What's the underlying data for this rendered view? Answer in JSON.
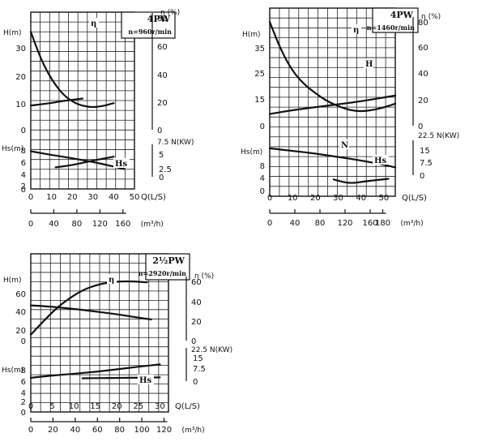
{
  "chart_data": [
    {
      "type": "line",
      "model": "4PW",
      "speed": "n=960r/min",
      "x_unit": "Q(L/S)",
      "x_ticks": [
        "0",
        "10",
        "20",
        "30",
        "40",
        "50"
      ],
      "x2_unit": "(m³/h)",
      "x2_ticks": [
        "0",
        "40",
        "80",
        "120",
        "160"
      ],
      "h_label": "H(m)",
      "h_ticks": [
        "30",
        "20",
        "10",
        "0"
      ],
      "eta_label": "η (%)",
      "eta_ticks": [
        "80",
        "60",
        "40",
        "20",
        "0"
      ],
      "hs_label": "Hs(m)",
      "hs_ticks": [
        "8",
        "6",
        "4",
        "2",
        "0"
      ],
      "n_label": "7.5 N(KW)",
      "n_ticks": [
        "5",
        "2.5",
        "0"
      ],
      "series": [
        {
          "name": "η",
          "axis": "eta",
          "x": [
            0,
            5,
            10,
            15,
            20,
            25,
            30,
            35,
            40
          ],
          "y": [
            10,
            30,
            44,
            54,
            60,
            63,
            64,
            63,
            61
          ]
        },
        {
          "name": "",
          "axis": "h",
          "x": [
            0,
            5,
            10,
            15,
            20,
            25
          ],
          "y": [
            16,
            15,
            14,
            12.5,
            11.5,
            10.5
          ]
        },
        {
          "name": "",
          "axis": "n",
          "x": [
            0,
            10,
            20,
            30,
            40,
            45
          ],
          "y": [
            2,
            2.8,
            3.5,
            4.3,
            5.3,
            5.8
          ]
        },
        {
          "name": "Hs",
          "axis": "hs",
          "x": [
            12,
            20,
            30,
            40
          ],
          "y": [
            6.2,
            5.8,
            5,
            4.3
          ]
        }
      ]
    },
    {
      "type": "line",
      "model": "4PW",
      "speed": "n=1460r/min",
      "x_unit": "Q(L/S)",
      "x_ticks": [
        "0",
        "10",
        "20",
        "30",
        "40",
        "50"
      ],
      "x2_unit": "(m³/h)",
      "x2_ticks": [
        "0",
        "40",
        "80",
        "120",
        "160",
        "180"
      ],
      "h_label": "H(m)",
      "h_ticks": [
        "35",
        "25",
        "15",
        "0"
      ],
      "eta_label": "η (%)",
      "eta_ticks": [
        "80",
        "60",
        "40",
        "20",
        "0"
      ],
      "hs_label": "Hs(m)",
      "hs_ticks": [
        "8",
        "4",
        "0"
      ],
      "n_label": "22.5 N(KW)",
      "n_ticks": [
        "15",
        "7.5",
        "0"
      ],
      "series": [
        {
          "name": "η",
          "axis": "eta",
          "x": [
            0,
            5,
            10,
            15,
            20,
            25,
            30,
            35,
            40,
            45,
            50,
            55
          ],
          "y": [
            0,
            22,
            38,
            48,
            55,
            61,
            65,
            68,
            69,
            68,
            66,
            63
          ]
        },
        {
          "name": "H",
          "axis": "h",
          "x": [
            0,
            10,
            20,
            30,
            40,
            50,
            55
          ],
          "y": [
            34,
            32,
            30.5,
            29,
            27.5,
            25.5,
            24.5
          ]
        },
        {
          "name": "N",
          "axis": "n",
          "x": [
            0,
            10,
            20,
            30,
            40,
            50,
            55
          ],
          "y": [
            7,
            8.5,
            10,
            12,
            14,
            16.5,
            18
          ]
        },
        {
          "name": "Hs",
          "axis": "hs",
          "x": [
            28,
            35,
            42,
            52
          ],
          "y": [
            7.2,
            7.9,
            7.5,
            7.1
          ]
        }
      ]
    },
    {
      "type": "line",
      "model": "2½PW",
      "speed": "n=2920r/min",
      "x_unit": "Q(L/S)",
      "x_ticks": [
        "0",
        "5",
        "10",
        "15",
        "20",
        "25",
        "30"
      ],
      "x2_unit": "(m³/h)",
      "x2_ticks": [
        "0",
        "20",
        "40",
        "60",
        "80",
        "100",
        "120"
      ],
      "h_label": "H(m)",
      "h_ticks": [
        "60",
        "40",
        "20",
        "0"
      ],
      "eta_label": "η (%)",
      "eta_ticks": [
        "60",
        "40",
        "20",
        "0"
      ],
      "hs_label": "Hs(m)",
      "hs_ticks": [
        "8",
        "6",
        "4",
        "2",
        "0"
      ],
      "n_label": "22.5 N(KW)",
      "n_ticks": [
        "15",
        "7.5",
        "0"
      ],
      "series": [
        {
          "name": "η",
          "axis": "eta",
          "x": [
            0,
            3,
            6,
            9,
            12,
            15,
            18,
            21,
            24,
            27
          ],
          "y": [
            6,
            20,
            33,
            43,
            51,
            56,
            59,
            60,
            60,
            59
          ]
        },
        {
          "name": "",
          "axis": "h",
          "x": [
            0,
            5,
            10,
            15,
            20,
            25,
            28
          ],
          "y": [
            40,
            38.5,
            36,
            33,
            30,
            26,
            24
          ]
        },
        {
          "name": "",
          "axis": "n",
          "x": [
            0,
            5,
            10,
            15,
            20,
            25,
            30
          ],
          "y": [
            2.5,
            4.2,
            5.5,
            7,
            8.8,
            10.8,
            12.5
          ]
        },
        {
          "name": "Hs",
          "axis": "hs",
          "x": [
            12,
            18,
            24,
            30
          ],
          "y": [
            5,
            5.1,
            5.2,
            5.3
          ]
        }
      ]
    }
  ]
}
